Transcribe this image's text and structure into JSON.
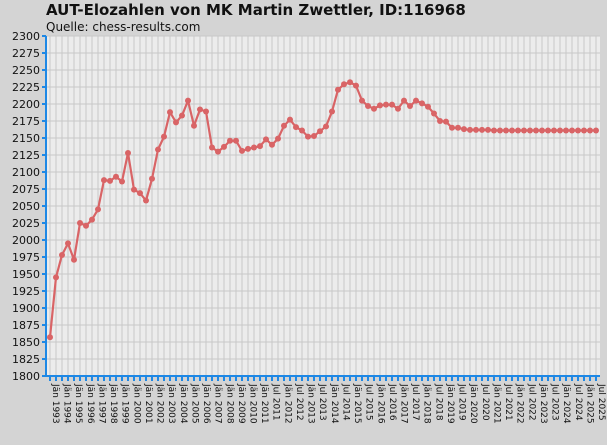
{
  "chart_data": {
    "type": "line",
    "title": "AUT-Elozahlen von MK Martin Zwettler, ID:116968",
    "subtitle": "Quelle: chess-results.com",
    "xlabel": "",
    "ylabel": "",
    "ylim": [
      1800,
      2300
    ],
    "ytick_step": 25,
    "grid": true,
    "line_color": "#d96466",
    "axis_color": "#1e88e5",
    "plot_background": "#ececec",
    "grid_color": "#c8c8c8",
    "series": [
      {
        "values": [
          1857,
          1945,
          1978,
          1995,
          1971,
          2025,
          2021,
          2030,
          2045,
          2088,
          2087,
          2093,
          2086,
          2128,
          2074,
          2069,
          2058,
          2090,
          2133,
          2152,
          2188,
          2173,
          2183,
          2205,
          2168,
          2192,
          2189,
          2136,
          2130,
          2137,
          2146,
          2146,
          2131,
          2134,
          2136,
          2138,
          2148,
          2140,
          2149,
          2168,
          2177,
          2166,
          2161,
          2152,
          2153,
          2160,
          2167,
          2189,
          2221,
          2229,
          2232,
          2227,
          2205,
          2197,
          2193,
          2198,
          2199,
          2199,
          2193,
          2205,
          2197,
          2205,
          2201,
          2196,
          2186,
          2175,
          2174,
          2165,
          2165,
          2163,
          2162,
          2162,
          2162,
          2162,
          2161,
          2161,
          2161,
          2161,
          2161,
          2161,
          2161,
          2161,
          2161,
          2161,
          2161,
          2161,
          2161,
          2161,
          2161,
          2161,
          2161,
          2161
        ]
      }
    ],
    "x_labels": [
      "Jän 1993",
      "Jän 1994",
      "Jän 1995",
      "Jän 1996",
      "Jän 1997",
      "Jän 1998",
      "Jän 1999",
      "Jän 2000",
      "Jän 2001",
      "Jän 2002",
      "Jän 2003",
      "Jän 2004",
      "Jän 2005",
      "Jän 2006",
      "Jän 2007",
      "Jän 2008",
      "Jän 2009",
      "Jän 2010",
      "Jän 2011",
      "Jul 2011",
      "Jän 2012",
      "Jul 2012",
      "Jän 2013",
      "Jul 2013",
      "Jän 2014",
      "Jul 2014",
      "Jän 2015",
      "Jul 2015",
      "Jän 2016",
      "Jul 2016",
      "Jän 2017",
      "Jul 2017",
      "Jän 2018",
      "Jul 2018",
      "Jän 2019",
      "Jul 2019",
      "Jän 2020",
      "Jul 2020",
      "Jän 2021",
      "Jul 2021",
      "Jän 2022",
      "Jul 2022",
      "Jän 2023",
      "Jul 2023",
      "Jän 2024",
      "Jul 2024",
      "Jän 2025",
      "Jul 2025"
    ]
  }
}
